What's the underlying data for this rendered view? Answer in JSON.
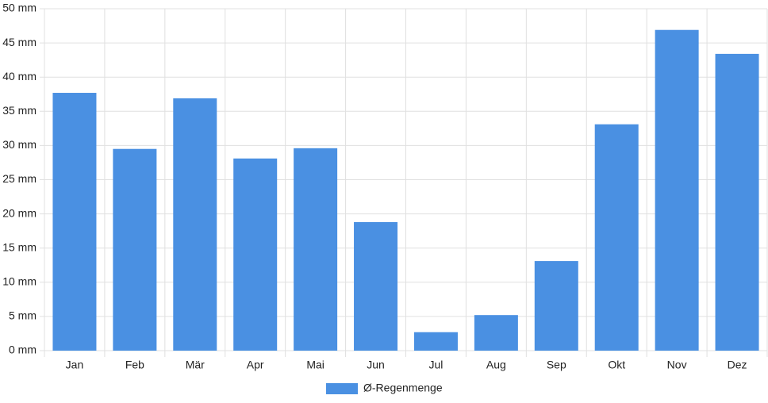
{
  "chart_data": {
    "type": "bar",
    "categories": [
      "Jan",
      "Feb",
      "Mär",
      "Apr",
      "Mai",
      "Jun",
      "Jul",
      "Aug",
      "Sep",
      "Okt",
      "Nov",
      "Dez"
    ],
    "series": [
      {
        "name": "Ø-Regenmenge",
        "color": "#4a90e2",
        "values": [
          37.7,
          29.5,
          36.9,
          28.1,
          29.6,
          18.8,
          2.7,
          5.2,
          13.1,
          33.1,
          46.9,
          43.4
        ]
      }
    ],
    "ylim": [
      0,
      50
    ],
    "yticks": [
      {
        "value": 0,
        "label": "0 mm"
      },
      {
        "value": 5,
        "label": "5 mm"
      },
      {
        "value": 10,
        "label": "10 mm"
      },
      {
        "value": 15,
        "label": "15 mm"
      },
      {
        "value": 20,
        "label": "20 mm"
      },
      {
        "value": 25,
        "label": "25 mm"
      },
      {
        "value": 30,
        "label": "30 mm"
      },
      {
        "value": 35,
        "label": "35 mm"
      },
      {
        "value": 40,
        "label": "40 mm"
      },
      {
        "value": 45,
        "label": "45 mm"
      },
      {
        "value": 50,
        "label": "50 mm"
      }
    ],
    "grid": true,
    "legend": "bottom"
  }
}
